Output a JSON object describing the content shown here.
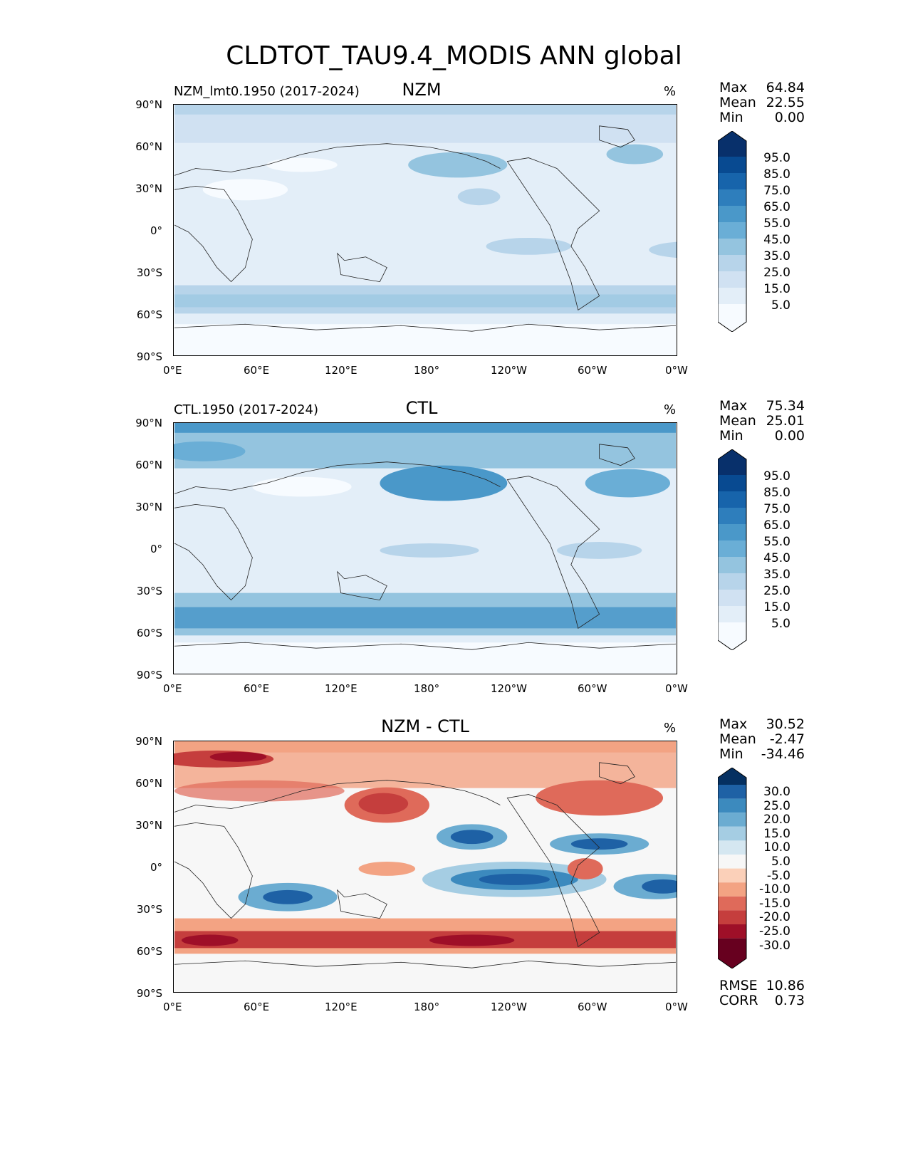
{
  "title": "CLDTOT_TAU9.4_MODIS ANN global",
  "lat_labels": [
    "90°N",
    "60°N",
    "30°N",
    "0°",
    "30°S",
    "60°S",
    "90°S"
  ],
  "lon_labels": [
    "0°E",
    "60°E",
    "120°E",
    "180°",
    "120°W",
    "60°W",
    "0°W"
  ],
  "panels": [
    {
      "name": "nzm",
      "title": "NZM",
      "subtitle": "NZM_lmt0.1950 (2017-2024)",
      "unit": "%",
      "stats": [
        {
          "k": "Max",
          "v": "64.84"
        },
        {
          "k": "Mean",
          "v": "22.55"
        },
        {
          "k": "Min",
          "v": "0.00"
        }
      ],
      "cbar": [
        "95.0",
        "85.0",
        "75.0",
        "65.0",
        "55.0",
        "45.0",
        "35.0",
        "25.0",
        "15.0",
        "5.0"
      ]
    },
    {
      "name": "ctl",
      "title": "CTL",
      "subtitle": "CTL.1950 (2017-2024)",
      "unit": "%",
      "stats": [
        {
          "k": "Max",
          "v": "75.34"
        },
        {
          "k": "Mean",
          "v": "25.01"
        },
        {
          "k": "Min",
          "v": "0.00"
        }
      ],
      "cbar": [
        "95.0",
        "85.0",
        "75.0",
        "65.0",
        "55.0",
        "45.0",
        "35.0",
        "25.0",
        "15.0",
        "5.0"
      ]
    },
    {
      "name": "diff",
      "title": "NZM - CTL",
      "subtitle": "",
      "unit": "%",
      "stats": [
        {
          "k": "Max",
          "v": "30.52"
        },
        {
          "k": "Mean",
          "v": "-2.47"
        },
        {
          "k": "Min",
          "v": "-34.46"
        }
      ],
      "cbar": [
        "30.0",
        "25.0",
        "20.0",
        "15.0",
        "10.0",
        "5.0",
        "-5.0",
        "-10.0",
        "-15.0",
        "-20.0",
        "-25.0",
        "-30.0"
      ],
      "metrics": [
        {
          "k": "RMSE",
          "v": "10.86"
        },
        {
          "k": "CORR",
          "v": "0.73"
        }
      ]
    }
  ],
  "colors": {
    "blues": [
      "#f7fbff",
      "#e3eef8",
      "#d0e1f2",
      "#b7d4ea",
      "#94c4df",
      "#6aaed6",
      "#4a98c9",
      "#2e7ebc",
      "#1764ab",
      "#084a91",
      "#08306b"
    ],
    "diverging": [
      "#67001f",
      "#9e0f28",
      "#c53e3d",
      "#df6a5a",
      "#f3a383",
      "#fbd0b9",
      "#f7f7f7",
      "#d5e7f1",
      "#a5cde3",
      "#6bacd1",
      "#3c8abe",
      "#1e61a5",
      "#053061"
    ]
  }
}
